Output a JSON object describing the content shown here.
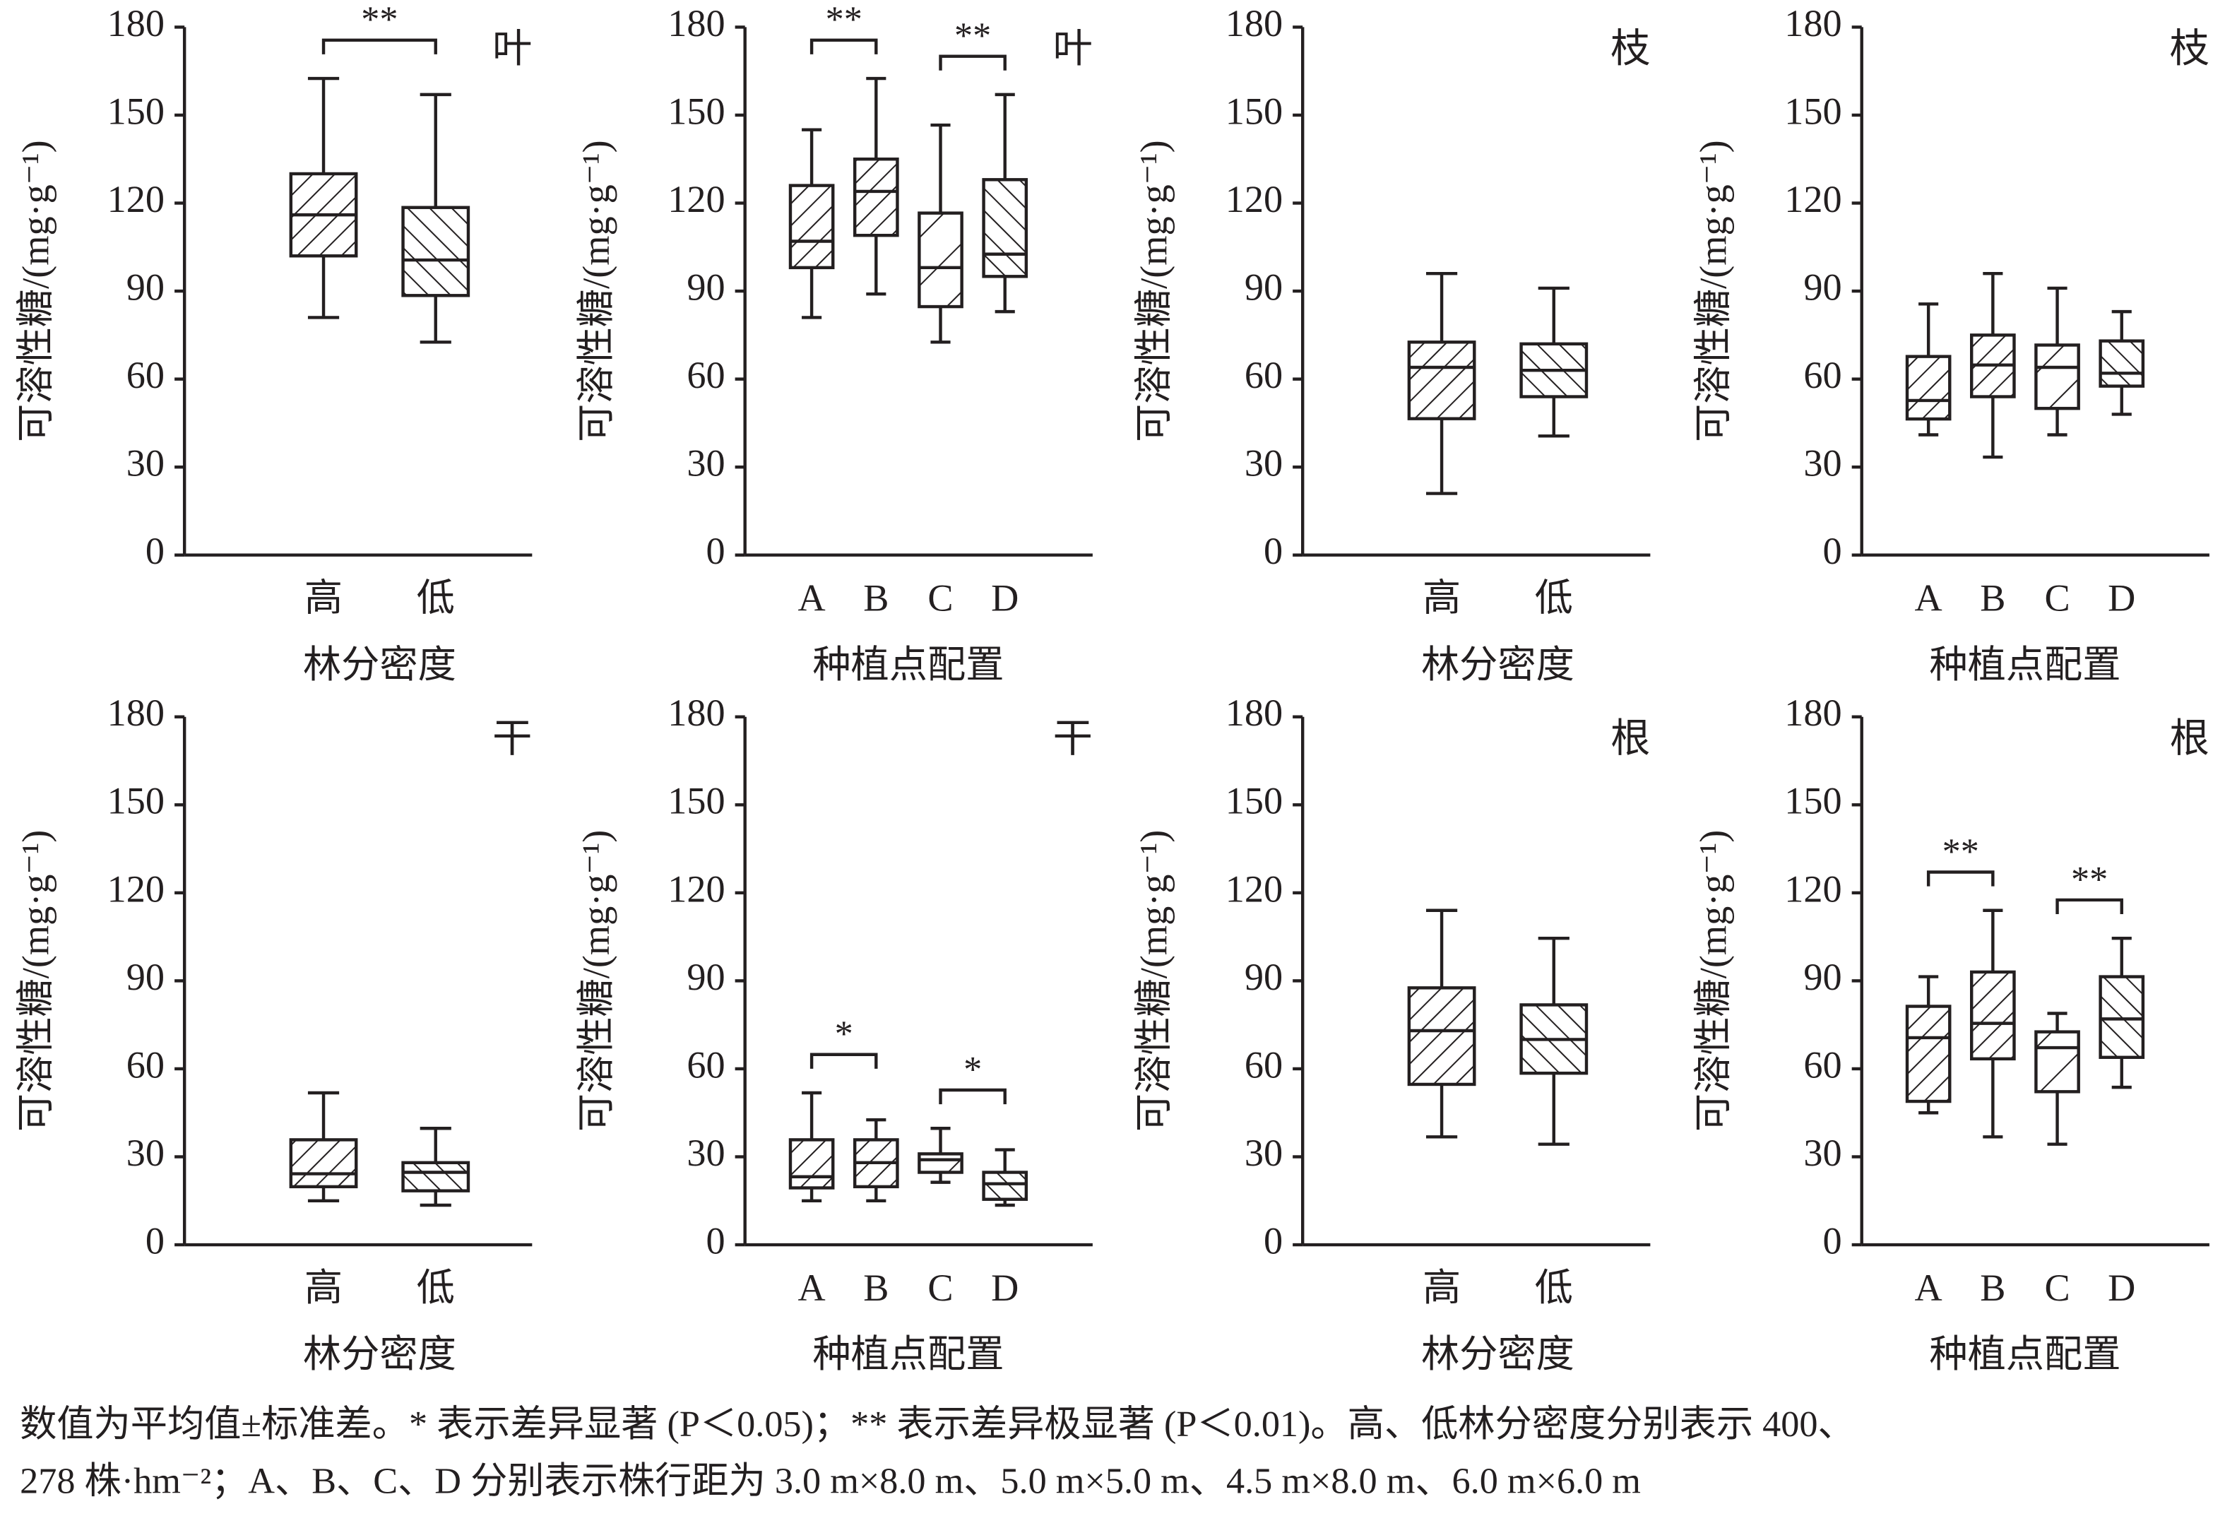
{
  "chart_data": [
    {
      "type": "box",
      "title": "叶",
      "ylabel": "可溶性糖/(mg·g⁻¹)",
      "xlabel": "林分密度",
      "categories": [
        "高",
        "低"
      ],
      "hatches": [
        "//",
        "\\\\"
      ],
      "boxes": [
        {
          "min": 81,
          "q1": 102,
          "median": 116,
          "q3": 130,
          "max": 162.5
        },
        {
          "min": 72.6,
          "q1": 88.5,
          "median": 100.6,
          "q3": 118.5,
          "max": 157
        }
      ],
      "annotations": [
        {
          "label": "**",
          "categories": [
            "高",
            "低"
          ]
        }
      ],
      "ylim": [
        0,
        180
      ],
      "yticks": [
        0,
        30,
        60,
        90,
        120,
        150,
        180
      ],
      "color": "#231f20"
    },
    {
      "type": "box",
      "title": "叶",
      "ylabel": "可溶性糖/(mg·g⁻¹)",
      "xlabel": "种植点配置",
      "categories": [
        "A",
        "B",
        "C",
        "D"
      ],
      "hatches": [
        "//",
        "//",
        "/",
        "\\\\"
      ],
      "boxes": [
        {
          "min": 81,
          "q1": 98,
          "median": 107,
          "q3": 126,
          "max": 145
        },
        {
          "min": 89,
          "q1": 109,
          "median": 124,
          "q3": 135,
          "max": 162.5
        },
        {
          "min": 72.6,
          "q1": 84.7,
          "median": 98,
          "q3": 116.6,
          "max": 146.6
        },
        {
          "min": 83,
          "q1": 95,
          "median": 102.6,
          "q3": 128,
          "max": 157
        }
      ],
      "annotations": [
        {
          "label": "**",
          "categories": [
            "A",
            "B"
          ]
        },
        {
          "label": "**",
          "categories": [
            "C",
            "D"
          ]
        }
      ],
      "ylim": [
        0,
        180
      ],
      "yticks": [
        0,
        30,
        60,
        90,
        120,
        150,
        180
      ],
      "color": "#231f20"
    },
    {
      "type": "box",
      "title": "枝",
      "ylabel": "可溶性糖/(mg·g⁻¹)",
      "xlabel": "林分密度",
      "categories": [
        "高",
        "低"
      ],
      "hatches": [
        "//",
        "\\\\"
      ],
      "boxes": [
        {
          "min": 21,
          "q1": 46.5,
          "median": 64,
          "q3": 72.6,
          "max": 96
        },
        {
          "min": 40.6,
          "q1": 54,
          "median": 63,
          "q3": 72,
          "max": 91
        }
      ],
      "annotations": [],
      "ylim": [
        0,
        180
      ],
      "yticks": [
        0,
        30,
        60,
        90,
        120,
        150,
        180
      ],
      "color": "#231f20"
    },
    {
      "type": "box",
      "title": "枝",
      "ylabel": "可溶性糖/(mg·g⁻¹)",
      "xlabel": "种植点配置",
      "categories": [
        "A",
        "B",
        "C",
        "D"
      ],
      "hatches": [
        "//",
        "//",
        "/",
        "\\\\"
      ],
      "boxes": [
        {
          "min": 41,
          "q1": 46.4,
          "median": 52.7,
          "q3": 67.7,
          "max": 85.6
        },
        {
          "min": 33.4,
          "q1": 54,
          "median": 64.8,
          "q3": 75,
          "max": 96
        },
        {
          "min": 41,
          "q1": 50,
          "median": 64,
          "q3": 71.6,
          "max": 91
        },
        {
          "min": 48,
          "q1": 57.6,
          "median": 62,
          "q3": 73,
          "max": 83
        }
      ],
      "annotations": [],
      "ylim": [
        0,
        180
      ],
      "yticks": [
        0,
        30,
        60,
        90,
        120,
        150,
        180
      ],
      "color": "#231f20"
    },
    {
      "type": "box",
      "title": "干",
      "ylabel": "可溶性糖/(mg·g⁻¹)",
      "xlabel": "林分密度",
      "categories": [
        "高",
        "低"
      ],
      "hatches": [
        "//",
        "\\\\"
      ],
      "boxes": [
        {
          "min": 15,
          "q1": 19.8,
          "median": 24.2,
          "q3": 35.8,
          "max": 51.8
        },
        {
          "min": 13.5,
          "q1": 18.4,
          "median": 24.7,
          "q3": 28,
          "max": 39.7
        }
      ],
      "annotations": [],
      "ylim": [
        0,
        180
      ],
      "yticks": [
        0,
        30,
        60,
        90,
        120,
        150,
        180
      ],
      "color": "#231f20"
    },
    {
      "type": "box",
      "title": "干",
      "ylabel": "可溶性糖/(mg·g⁻¹)",
      "xlabel": "种植点配置",
      "categories": [
        "A",
        "B",
        "C",
        "D"
      ],
      "hatches": [
        "//",
        "//",
        "/",
        "\\\\"
      ],
      "boxes": [
        {
          "min": 15,
          "q1": 19.4,
          "median": 23.2,
          "q3": 35.8,
          "max": 51.8
        },
        {
          "min": 15,
          "q1": 19.8,
          "median": 28,
          "q3": 35.8,
          "max": 42.6
        },
        {
          "min": 21.3,
          "q1": 24.7,
          "median": 29,
          "q3": 31,
          "max": 39.7
        },
        {
          "min": 13.5,
          "q1": 15.5,
          "median": 20.8,
          "q3": 24.7,
          "max": 32.4
        }
      ],
      "annotations": [
        {
          "label": "*",
          "categories": [
            "A",
            "B"
          ]
        },
        {
          "label": "*",
          "categories": [
            "C",
            "D"
          ]
        }
      ],
      "ylim": [
        0,
        180
      ],
      "yticks": [
        0,
        30,
        60,
        90,
        120,
        150,
        180
      ],
      "color": "#231f20"
    },
    {
      "type": "box",
      "title": "根",
      "ylabel": "可溶性糖/(mg·g⁻¹)",
      "xlabel": "林分密度",
      "categories": [
        "高",
        "低"
      ],
      "hatches": [
        "//",
        "\\\\"
      ],
      "boxes": [
        {
          "min": 36.8,
          "q1": 54.7,
          "median": 73,
          "q3": 87.6,
          "max": 114
        },
        {
          "min": 34.3,
          "q1": 58.5,
          "median": 70,
          "q3": 81.8,
          "max": 104.5
        }
      ],
      "annotations": [],
      "ylim": [
        0,
        180
      ],
      "yticks": [
        0,
        30,
        60,
        90,
        120,
        150,
        180
      ],
      "color": "#231f20"
    },
    {
      "type": "box",
      "title": "根",
      "ylabel": "可溶性糖/(mg·g⁻¹)",
      "xlabel": "种植点配置",
      "categories": [
        "A",
        "B",
        "C",
        "D"
      ],
      "hatches": [
        "//",
        "//",
        "/",
        "\\\\"
      ],
      "boxes": [
        {
          "min": 45,
          "q1": 48.9,
          "median": 70.6,
          "q3": 81.3,
          "max": 91.4
        },
        {
          "min": 36.8,
          "q1": 63.4,
          "median": 75.5,
          "q3": 93,
          "max": 114
        },
        {
          "min": 34.3,
          "q1": 52.2,
          "median": 67.2,
          "q3": 72.6,
          "max": 78.9
        },
        {
          "min": 53.7,
          "q1": 63.9,
          "median": 77,
          "q3": 91.4,
          "max": 104.5
        }
      ],
      "annotations": [
        {
          "label": "**",
          "categories": [
            "A",
            "B"
          ]
        },
        {
          "label": "**",
          "categories": [
            "C",
            "D"
          ]
        }
      ],
      "ylim": [
        0,
        180
      ],
      "yticks": [
        0,
        30,
        60,
        90,
        120,
        150,
        180
      ],
      "color": "#231f20"
    }
  ],
  "note": [
    "数值为平均值±标准差。* 表示差异显著 (P＜0.05)；** 表示差异极显著 (P＜0.01)。高、低林分密度分别表示 400、",
    "278 株·hm⁻²；A、B、C、D 分别表示株行距为 3.0 m×8.0 m、5.0 m×5.0 m、4.5 m×8.0 m、6.0 m×6.0 m"
  ]
}
